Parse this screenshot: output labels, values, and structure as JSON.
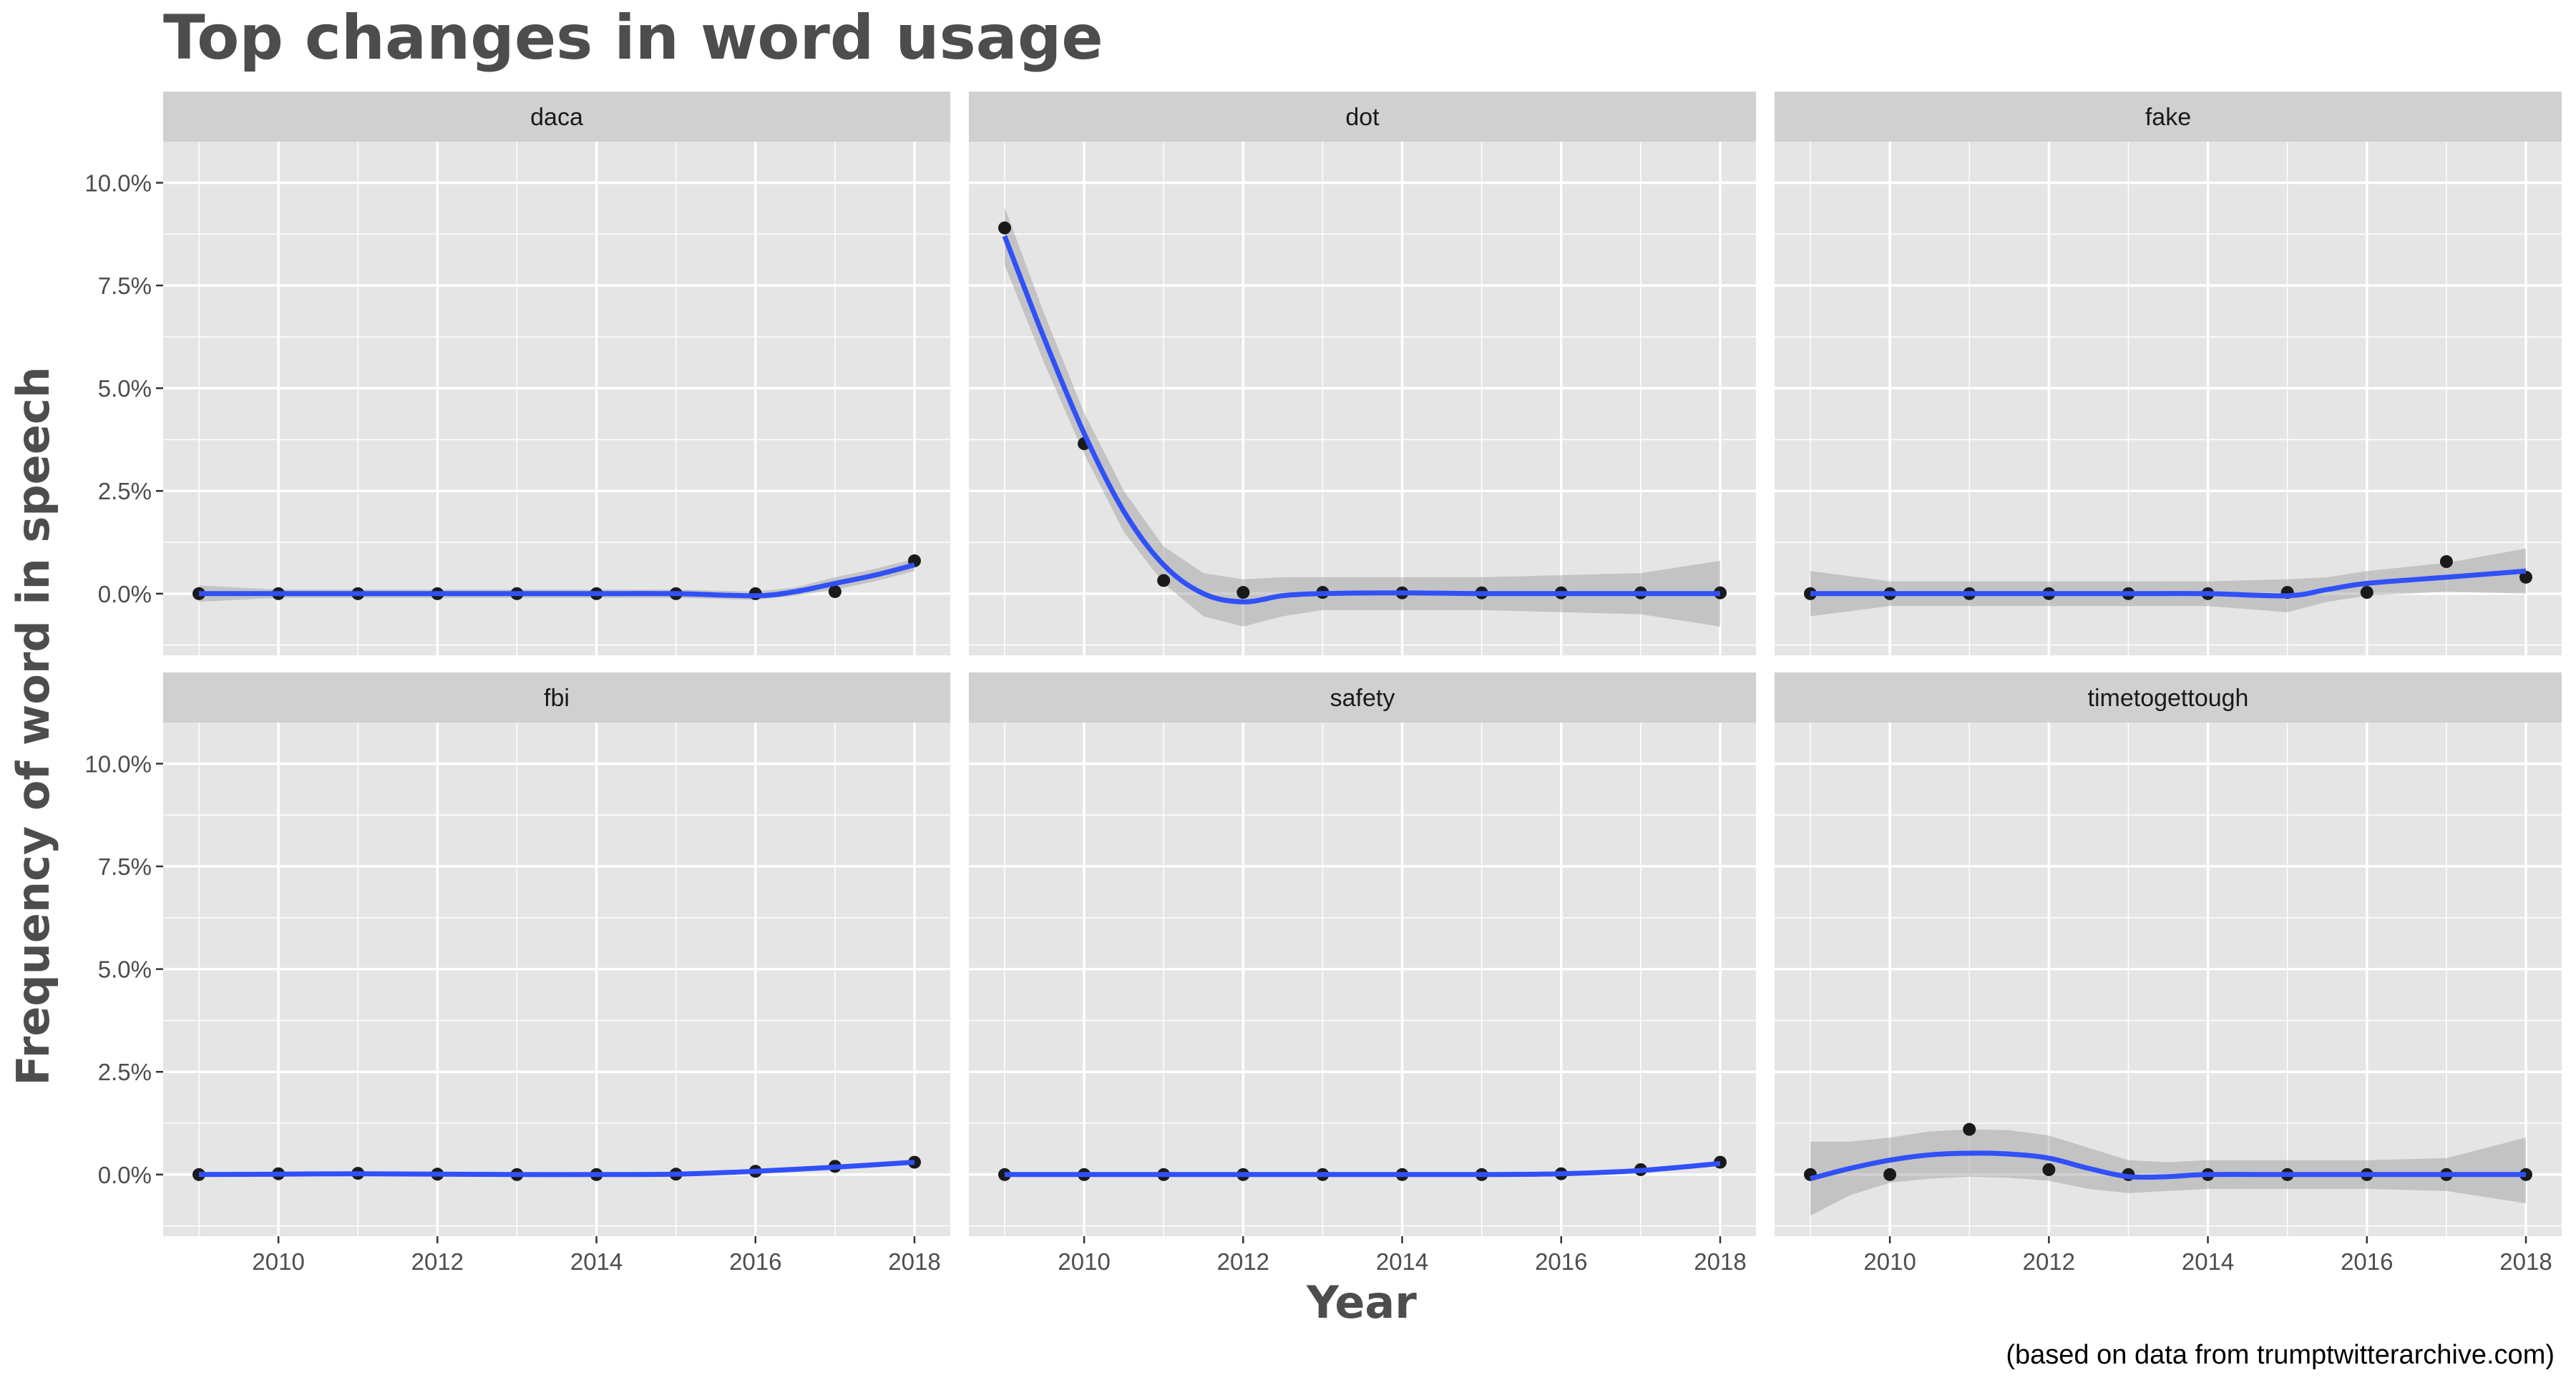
{
  "title": "Top changes in word usage",
  "caption": "(based on data from trumptwitterarchive.com)",
  "colors": {
    "panel_bg": "#e5e5e5",
    "strip_bg": "#d0d0d0",
    "grid": "#ffffff",
    "line": "#3050f8",
    "ribbon": "#999999",
    "point": "#1a1a1a",
    "title": "#4d4d4d"
  },
  "chart_data": {
    "type": "scatter",
    "subtype": "faceted scatter with loess smoothing line and confidence ribbon",
    "title": "Top changes in word usage",
    "xlabel": "Year",
    "ylabel": "Frequency of word in speech",
    "xlim": [
      2009,
      2018
    ],
    "ylim": [
      -1.5,
      11.0
    ],
    "x_ticks": [
      2010,
      2012,
      2014,
      2016,
      2018
    ],
    "x_tick_labels": [
      "2010",
      "2012",
      "2014",
      "2016",
      "2018"
    ],
    "y_ticks": [
      0,
      2.5,
      5,
      7.5,
      10
    ],
    "y_tick_labels": [
      "0.0%",
      "2.5%",
      "5.0%",
      "7.5%",
      "10.0%"
    ],
    "grid": true,
    "facets": [
      {
        "name": "daca",
        "x": [
          2009,
          2010,
          2011,
          2012,
          2013,
          2014,
          2015,
          2016,
          2017,
          2018
        ],
        "y": [
          0,
          0,
          0,
          0,
          0,
          0,
          0,
          0,
          0.05,
          0.8
        ],
        "smooth_x": [
          2009,
          2010,
          2011,
          2012,
          2013,
          2014,
          2015,
          2016,
          2016.5,
          2017,
          2017.5,
          2018
        ],
        "smooth_y": [
          0,
          0,
          0,
          0,
          0,
          0,
          0,
          -0.05,
          0.05,
          0.25,
          0.45,
          0.7
        ],
        "band_lower": [
          -0.2,
          -0.1,
          -0.1,
          -0.1,
          -0.1,
          -0.1,
          -0.1,
          -0.15,
          -0.05,
          0.1,
          0.3,
          0.55
        ],
        "band_upper": [
          0.2,
          0.1,
          0.1,
          0.1,
          0.1,
          0.1,
          0.1,
          0.05,
          0.15,
          0.4,
          0.6,
          0.85
        ]
      },
      {
        "name": "dot",
        "x": [
          2009,
          2010,
          2011,
          2012,
          2013,
          2014,
          2015,
          2016,
          2017,
          2018
        ],
        "y": [
          8.9,
          3.65,
          0.32,
          0.03,
          0.03,
          0.02,
          0.02,
          0.02,
          0.02,
          0.02
        ],
        "smooth_x": [
          2009,
          2009.5,
          2010,
          2010.5,
          2011,
          2011.5,
          2012,
          2012.5,
          2013,
          2014,
          2015,
          2016,
          2017,
          2018
        ],
        "smooth_y": [
          8.7,
          6.2,
          3.9,
          2.0,
          0.7,
          0.0,
          -0.2,
          -0.05,
          0.0,
          0.02,
          0.0,
          0.0,
          0.0,
          0.0
        ],
        "band_lower": [
          8.0,
          5.6,
          3.4,
          1.5,
          0.25,
          -0.55,
          -0.8,
          -0.55,
          -0.4,
          -0.4,
          -0.4,
          -0.45,
          -0.5,
          -0.8
        ],
        "band_upper": [
          9.4,
          6.8,
          4.4,
          2.5,
          1.15,
          0.5,
          0.35,
          0.4,
          0.4,
          0.4,
          0.4,
          0.45,
          0.5,
          0.8
        ]
      },
      {
        "name": "fake",
        "x": [
          2009,
          2010,
          2011,
          2012,
          2013,
          2014,
          2015,
          2016,
          2017,
          2018
        ],
        "y": [
          0,
          0,
          0,
          0,
          0,
          0,
          0.03,
          0.03,
          0.78,
          0.4
        ],
        "smooth_x": [
          2009,
          2010,
          2011,
          2012,
          2013,
          2014,
          2015,
          2015.5,
          2016,
          2017,
          2018
        ],
        "smooth_y": [
          0,
          0,
          0,
          0,
          0,
          0,
          -0.05,
          0.1,
          0.25,
          0.4,
          0.55
        ],
        "band_lower": [
          -0.55,
          -0.3,
          -0.3,
          -0.3,
          -0.3,
          -0.3,
          -0.45,
          -0.2,
          -0.05,
          0.05,
          0.0
        ],
        "band_upper": [
          0.55,
          0.3,
          0.3,
          0.3,
          0.3,
          0.3,
          0.35,
          0.4,
          0.55,
          0.75,
          1.1
        ]
      },
      {
        "name": "fbi",
        "x": [
          2009,
          2010,
          2011,
          2012,
          2013,
          2014,
          2015,
          2016,
          2017,
          2018
        ],
        "y": [
          0,
          0.02,
          0.03,
          0.01,
          0,
          0,
          0.01,
          0.08,
          0.2,
          0.3
        ],
        "smooth_x": [
          2009,
          2010,
          2011,
          2012,
          2013,
          2014,
          2015,
          2016,
          2017,
          2018
        ],
        "smooth_y": [
          0,
          0.01,
          0.02,
          0.01,
          0,
          0,
          0.01,
          0.08,
          0.18,
          0.3
        ],
        "band_lower": [
          -0.04,
          -0.02,
          -0.01,
          -0.02,
          -0.03,
          -0.03,
          -0.02,
          0.05,
          0.15,
          0.24
        ],
        "band_upper": [
          0.04,
          0.04,
          0.05,
          0.04,
          0.03,
          0.03,
          0.04,
          0.11,
          0.21,
          0.36
        ]
      },
      {
        "name": "safety",
        "x": [
          2009,
          2010,
          2011,
          2012,
          2013,
          2014,
          2015,
          2016,
          2017,
          2018
        ],
        "y": [
          0,
          0,
          0,
          0,
          0,
          0,
          0,
          0.02,
          0.12,
          0.3
        ],
        "smooth_x": [
          2009,
          2010,
          2011,
          2012,
          2013,
          2014,
          2015,
          2016,
          2017,
          2018
        ],
        "smooth_y": [
          0,
          0,
          0,
          0,
          0,
          0,
          0,
          0.02,
          0.1,
          0.27
        ],
        "band_lower": [
          -0.03,
          -0.02,
          -0.02,
          -0.02,
          -0.02,
          -0.02,
          -0.02,
          -0.01,
          0.07,
          0.22
        ],
        "band_upper": [
          0.03,
          0.02,
          0.02,
          0.02,
          0.02,
          0.02,
          0.02,
          0.05,
          0.13,
          0.32
        ]
      },
      {
        "name": "timetogettough",
        "x": [
          2009,
          2010,
          2011,
          2012,
          2013,
          2014,
          2015,
          2016,
          2017,
          2018
        ],
        "y": [
          0,
          0,
          1.1,
          0.12,
          0,
          0,
          0,
          0,
          0,
          0
        ],
        "smooth_x": [
          2009,
          2009.5,
          2010,
          2010.5,
          2011,
          2011.5,
          2012,
          2012.5,
          2013,
          2013.5,
          2014,
          2015,
          2016,
          2017,
          2018
        ],
        "smooth_y": [
          -0.1,
          0.15,
          0.35,
          0.48,
          0.52,
          0.5,
          0.4,
          0.15,
          -0.05,
          -0.05,
          0,
          0,
          0,
          0,
          0
        ],
        "band_lower": [
          -1.0,
          -0.5,
          -0.2,
          -0.1,
          -0.05,
          -0.08,
          -0.15,
          -0.35,
          -0.45,
          -0.4,
          -0.35,
          -0.35,
          -0.35,
          -0.4,
          -0.7
        ],
        "band_upper": [
          0.8,
          0.8,
          0.9,
          1.05,
          1.1,
          1.08,
          0.95,
          0.65,
          0.35,
          0.3,
          0.35,
          0.35,
          0.35,
          0.4,
          0.9
        ]
      }
    ]
  }
}
